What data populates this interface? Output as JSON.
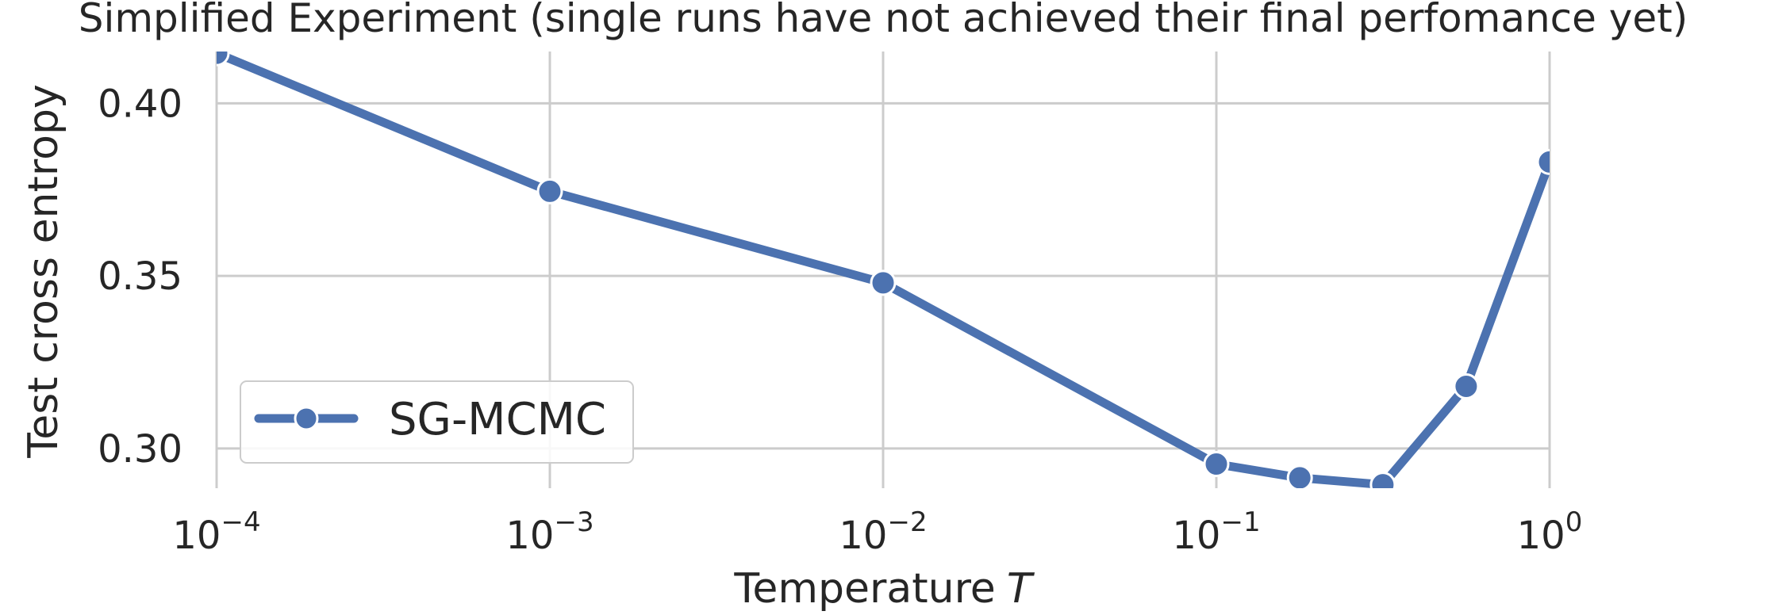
{
  "chart_data": {
    "type": "line",
    "title": "Simplified Experiment (single runs have not achieved their final perfomance yet)",
    "xlabel": "Temperature",
    "xlabel_var": "T",
    "ylabel": "Test cross entropy",
    "x_scale": "log",
    "xlim": [
      0.0001,
      1
    ],
    "ylim": [
      0.2885,
      0.415
    ],
    "grid": true,
    "x_ticks": [
      {
        "value": 0.0001,
        "base": "10",
        "exp": "−4"
      },
      {
        "value": 0.001,
        "base": "10",
        "exp": "−3"
      },
      {
        "value": 0.01,
        "base": "10",
        "exp": "−2"
      },
      {
        "value": 0.1,
        "base": "10",
        "exp": "−1"
      },
      {
        "value": 1,
        "base": "10",
        "exp": "0"
      }
    ],
    "y_ticks": [
      {
        "value": 0.3,
        "label": "0.30"
      },
      {
        "value": 0.35,
        "label": "0.35"
      },
      {
        "value": 0.4,
        "label": "0.40"
      }
    ],
    "legend_position": "lower-left",
    "series": [
      {
        "name": "SG-MCMC",
        "color": "#4c72b0",
        "marker": "circle",
        "x": [
          0.0001,
          0.001,
          0.01,
          0.1,
          0.178,
          0.316,
          0.562,
          1.0
        ],
        "y": [
          0.4145,
          0.3745,
          0.348,
          0.2955,
          0.2915,
          0.2895,
          0.318,
          0.383
        ]
      }
    ]
  }
}
